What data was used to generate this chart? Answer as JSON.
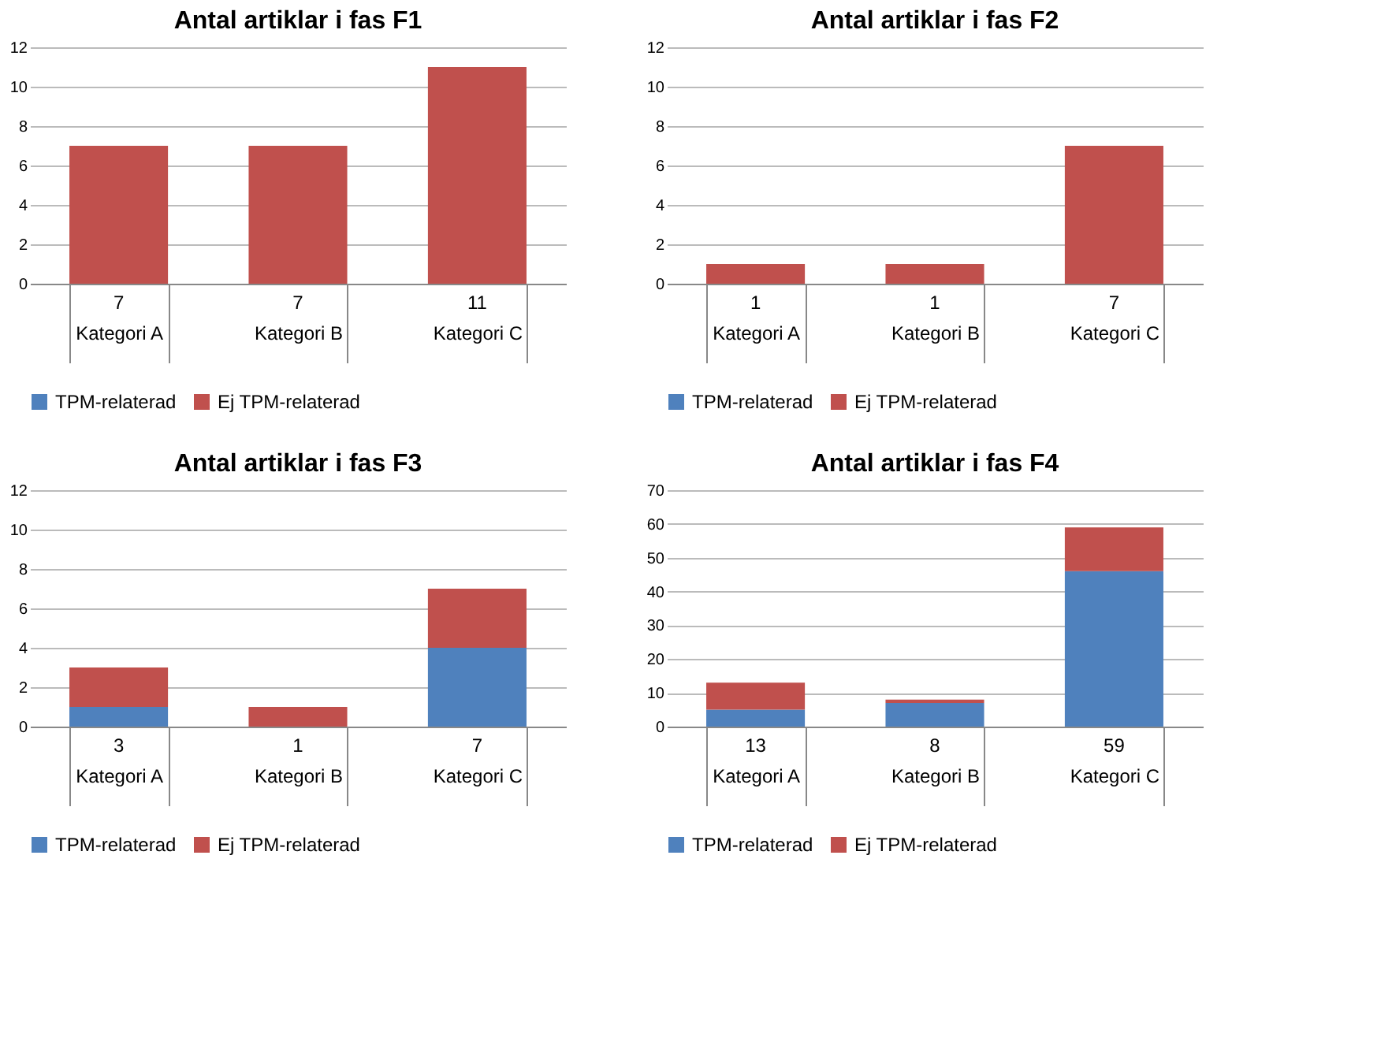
{
  "chart_data": [
    {
      "type": "bar",
      "title": "Antal artiklar i fas F1",
      "categories": [
        "Kategori A",
        "Kategori B",
        "Kategori C"
      ],
      "stacked": true,
      "series": [
        {
          "name": "TPM-relaterad",
          "color": "#4f81bd",
          "values": [
            0,
            0,
            0
          ]
        },
        {
          "name": "Ej TPM-relaterad",
          "color": "#c0504d",
          "values": [
            7,
            7,
            11
          ]
        }
      ],
      "totals": [
        "7",
        "7",
        "11"
      ],
      "ylim": [
        0,
        12
      ],
      "yticks": [
        0,
        2,
        4,
        6,
        8,
        10,
        12
      ],
      "grid": "y",
      "legend": "bottom"
    },
    {
      "type": "bar",
      "title": "Antal artiklar i fas F2",
      "categories": [
        "Kategori A",
        "Kategori B",
        "Kategori C"
      ],
      "stacked": true,
      "series": [
        {
          "name": "TPM-relaterad",
          "color": "#4f81bd",
          "values": [
            0,
            0,
            0
          ]
        },
        {
          "name": "Ej TPM-relaterad",
          "color": "#c0504d",
          "values": [
            1,
            1,
            7
          ]
        }
      ],
      "totals": [
        "1",
        "1",
        "7"
      ],
      "ylim": [
        0,
        12
      ],
      "yticks": [
        0,
        2,
        4,
        6,
        8,
        10,
        12
      ],
      "grid": "y",
      "legend": "bottom"
    },
    {
      "type": "bar",
      "title": "Antal artiklar i fas F3",
      "categories": [
        "Kategori A",
        "Kategori B",
        "Kategori C"
      ],
      "stacked": true,
      "series": [
        {
          "name": "TPM-relaterad",
          "color": "#4f81bd",
          "values": [
            1,
            0,
            4
          ]
        },
        {
          "name": "Ej TPM-relaterad",
          "color": "#c0504d",
          "values": [
            2,
            1,
            3
          ]
        }
      ],
      "totals": [
        "3",
        "1",
        "7"
      ],
      "ylim": [
        0,
        12
      ],
      "yticks": [
        0,
        2,
        4,
        6,
        8,
        10,
        12
      ],
      "grid": "y",
      "legend": "bottom"
    },
    {
      "type": "bar",
      "title": "Antal artiklar i fas F4",
      "categories": [
        "Kategori A",
        "Kategori B",
        "Kategori C"
      ],
      "stacked": true,
      "series": [
        {
          "name": "TPM-relaterad",
          "color": "#4f81bd",
          "values": [
            5,
            7,
            46
          ]
        },
        {
          "name": "Ej TPM-relaterad",
          "color": "#c0504d",
          "values": [
            8,
            1,
            13
          ]
        }
      ],
      "totals": [
        "13",
        "8",
        "59"
      ],
      "ylim": [
        0,
        70
      ],
      "yticks": [
        0,
        10,
        20,
        30,
        40,
        50,
        60,
        70
      ],
      "grid": "y",
      "legend": "bottom"
    }
  ]
}
